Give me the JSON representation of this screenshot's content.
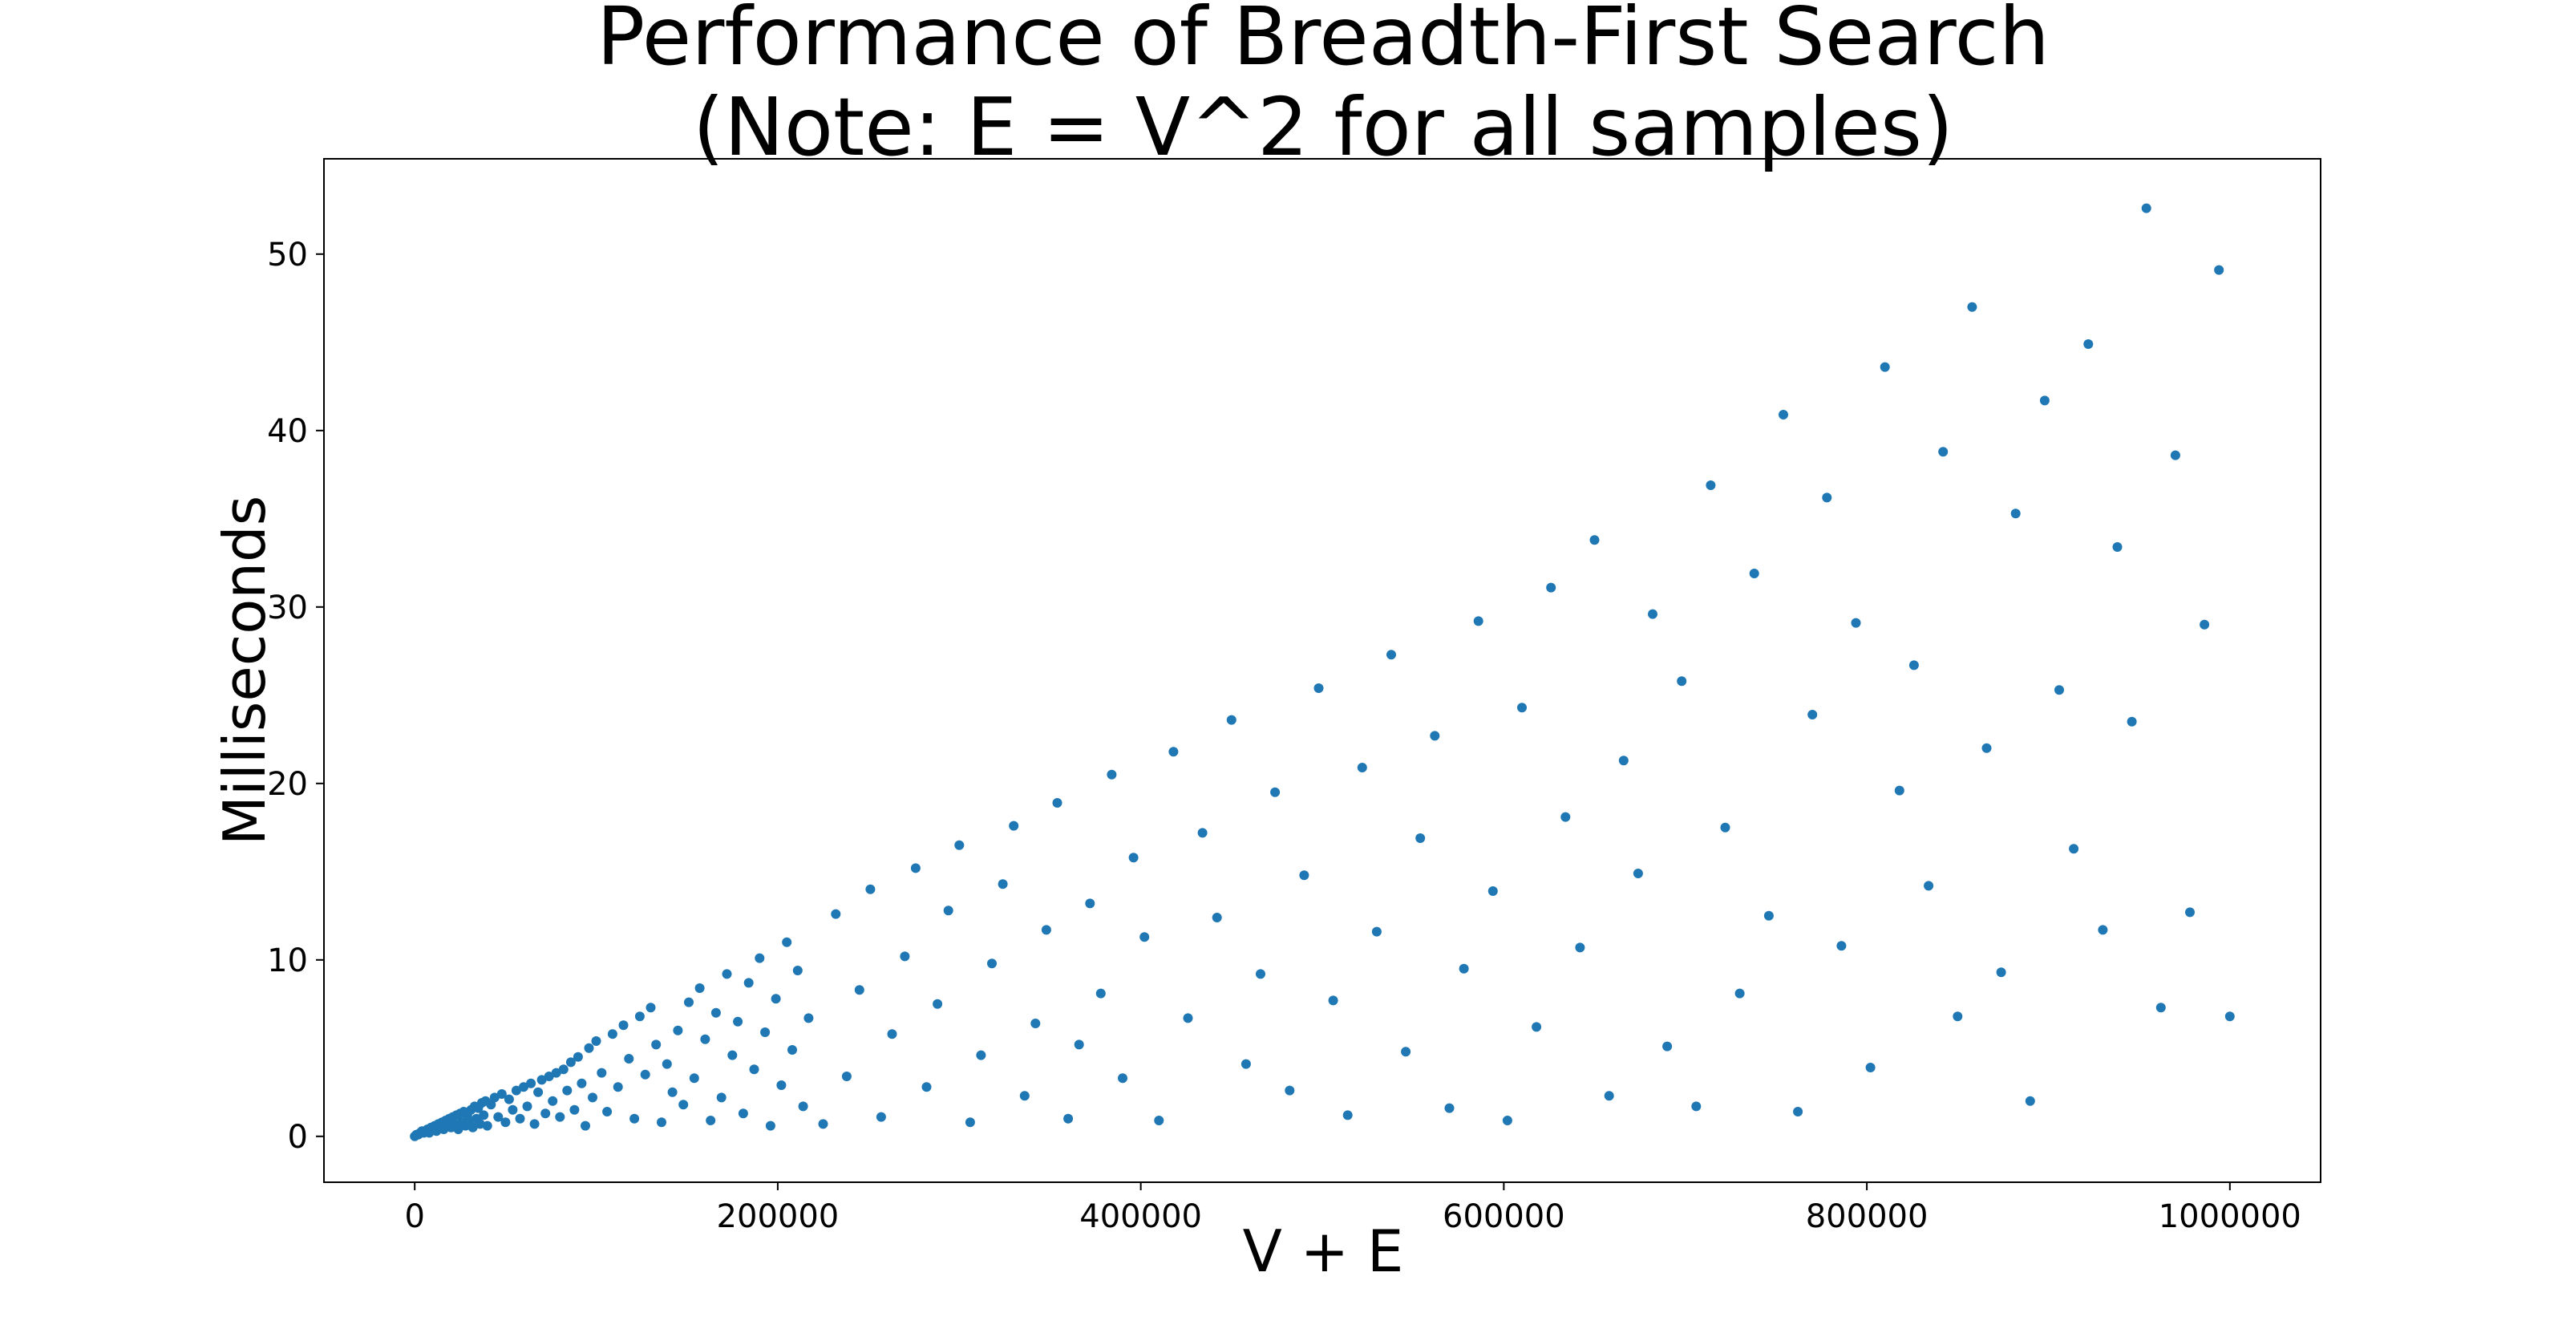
{
  "chart_data": {
    "type": "scatter",
    "title": [
      "Performance of Breadth-First Search",
      "(Note: E = V^2 for all samples)"
    ],
    "xlabel": "V + E",
    "ylabel": "Milliseconds",
    "xlim": [
      -50000,
      1050000
    ],
    "ylim": [
      -2.6,
      55.4
    ],
    "x_ticks": [
      0,
      200000,
      400000,
      600000,
      800000,
      1000000
    ],
    "x_tick_labels": [
      "0",
      "200000",
      "400000",
      "600000",
      "800000",
      "1000000"
    ],
    "y_ticks": [
      0,
      10,
      20,
      30,
      40,
      50
    ],
    "y_tick_labels": [
      "0",
      "10",
      "20",
      "30",
      "40",
      "50"
    ],
    "grid": false,
    "marker_color": "#1f77b4",
    "series": [
      {
        "points": [
          [
            0,
            0.0
          ],
          [
            1000,
            0.1
          ],
          [
            2000,
            0.1
          ],
          [
            3000,
            0.2
          ],
          [
            4000,
            0.3
          ],
          [
            5000,
            0.2
          ],
          [
            6000,
            0.3
          ],
          [
            7000,
            0.4
          ],
          [
            8000,
            0.2
          ],
          [
            9000,
            0.5
          ],
          [
            10000,
            0.4
          ],
          [
            11000,
            0.6
          ],
          [
            12000,
            0.3
          ],
          [
            13000,
            0.7
          ],
          [
            14000,
            0.5
          ],
          [
            15000,
            0.8
          ],
          [
            16000,
            0.4
          ],
          [
            17000,
            0.9
          ],
          [
            18000,
            0.6
          ],
          [
            19000,
            1.0
          ],
          [
            20000,
            0.5
          ],
          [
            21000,
            1.1
          ],
          [
            22000,
            0.7
          ],
          [
            23000,
            1.2
          ],
          [
            24000,
            0.4
          ],
          [
            25000,
            1.3
          ],
          [
            26000,
            0.8
          ],
          [
            27000,
            1.4
          ],
          [
            28000,
            0.6
          ],
          [
            29000,
            1.2
          ],
          [
            30000,
            0.9
          ],
          [
            31000,
            1.5
          ],
          [
            32000,
            0.5
          ],
          [
            33000,
            1.7
          ],
          [
            34000,
            1.0
          ],
          [
            35000,
            1.6
          ],
          [
            36000,
            0.7
          ],
          [
            37000,
            1.9
          ],
          [
            38000,
            1.2
          ],
          [
            39000,
            2.0
          ],
          [
            40000,
            0.6
          ],
          [
            42000,
            1.8
          ],
          [
            44000,
            2.2
          ],
          [
            46000,
            1.1
          ],
          [
            48000,
            2.4
          ],
          [
            50000,
            0.8
          ],
          [
            52000,
            2.1
          ],
          [
            54000,
            1.5
          ],
          [
            56000,
            2.6
          ],
          [
            58000,
            1.0
          ],
          [
            60000,
            2.8
          ],
          [
            62000,
            1.7
          ],
          [
            64000,
            3.0
          ],
          [
            66000,
            0.7
          ],
          [
            68000,
            2.5
          ],
          [
            70000,
            3.2
          ],
          [
            72000,
            1.3
          ],
          [
            74000,
            3.4
          ],
          [
            76000,
            2.0
          ],
          [
            78000,
            3.6
          ],
          [
            80000,
            1.1
          ],
          [
            82000,
            3.8
          ],
          [
            84000,
            2.6
          ],
          [
            86000,
            4.2
          ],
          [
            88000,
            1.5
          ],
          [
            90000,
            4.5
          ],
          [
            92000,
            3.0
          ],
          [
            94000,
            0.6
          ],
          [
            96000,
            5.0
          ],
          [
            98000,
            2.2
          ],
          [
            100000,
            5.4
          ],
          [
            103000,
            3.6
          ],
          [
            106000,
            1.4
          ],
          [
            109000,
            5.8
          ],
          [
            112000,
            2.8
          ],
          [
            115000,
            6.3
          ],
          [
            118000,
            4.4
          ],
          [
            121000,
            1.0
          ],
          [
            124000,
            6.8
          ],
          [
            127000,
            3.5
          ],
          [
            130000,
            7.3
          ],
          [
            133000,
            5.2
          ],
          [
            136000,
            0.8
          ],
          [
            139000,
            4.1
          ],
          [
            142000,
            2.5
          ],
          [
            145000,
            6.0
          ],
          [
            148000,
            1.8
          ],
          [
            151000,
            7.6
          ],
          [
            154000,
            3.3
          ],
          [
            157000,
            8.4
          ],
          [
            160000,
            5.5
          ],
          [
            163000,
            0.9
          ],
          [
            166000,
            7.0
          ],
          [
            169000,
            2.2
          ],
          [
            172000,
            9.2
          ],
          [
            175000,
            4.6
          ],
          [
            178000,
            6.5
          ],
          [
            181000,
            1.3
          ],
          [
            184000,
            8.7
          ],
          [
            187000,
            3.8
          ],
          [
            190000,
            10.1
          ],
          [
            193000,
            5.9
          ],
          [
            196000,
            0.6
          ],
          [
            199000,
            7.8
          ],
          [
            202000,
            2.9
          ],
          [
            205000,
            11.0
          ],
          [
            208000,
            4.9
          ],
          [
            211000,
            9.4
          ],
          [
            214000,
            1.7
          ],
          [
            217000,
            6.7
          ],
          [
            225000,
            0.7
          ],
          [
            232000,
            12.6
          ],
          [
            238000,
            3.4
          ],
          [
            245000,
            8.3
          ],
          [
            251000,
            14.0
          ],
          [
            257000,
            1.1
          ],
          [
            263000,
            5.8
          ],
          [
            270000,
            10.2
          ],
          [
            276000,
            15.2
          ],
          [
            282000,
            2.8
          ],
          [
            288000,
            7.5
          ],
          [
            294000,
            12.8
          ],
          [
            300000,
            16.5
          ],
          [
            306000,
            0.8
          ],
          [
            312000,
            4.6
          ],
          [
            318000,
            9.8
          ],
          [
            324000,
            14.3
          ],
          [
            330000,
            17.6
          ],
          [
            336000,
            2.3
          ],
          [
            342000,
            6.4
          ],
          [
            348000,
            11.7
          ],
          [
            354000,
            18.9
          ],
          [
            360000,
            1.0
          ],
          [
            366000,
            5.2
          ],
          [
            372000,
            13.2
          ],
          [
            378000,
            8.1
          ],
          [
            384000,
            20.5
          ],
          [
            390000,
            3.3
          ],
          [
            396000,
            15.8
          ],
          [
            402000,
            11.3
          ],
          [
            410000,
            0.9
          ],
          [
            418000,
            21.8
          ],
          [
            426000,
            6.7
          ],
          [
            434000,
            17.2
          ],
          [
            442000,
            12.4
          ],
          [
            450000,
            23.6
          ],
          [
            458000,
            4.1
          ],
          [
            466000,
            9.2
          ],
          [
            474000,
            19.5
          ],
          [
            482000,
            2.6
          ],
          [
            490000,
            14.8
          ],
          [
            498000,
            25.4
          ],
          [
            506000,
            7.7
          ],
          [
            514000,
            1.2
          ],
          [
            522000,
            20.9
          ],
          [
            530000,
            11.6
          ],
          [
            538000,
            27.3
          ],
          [
            546000,
            4.8
          ],
          [
            554000,
            16.9
          ],
          [
            562000,
            22.7
          ],
          [
            570000,
            1.6
          ],
          [
            578000,
            9.5
          ],
          [
            586000,
            29.2
          ],
          [
            594000,
            13.9
          ],
          [
            602000,
            0.9
          ],
          [
            610000,
            24.3
          ],
          [
            618000,
            6.2
          ],
          [
            626000,
            31.1
          ],
          [
            634000,
            18.1
          ],
          [
            642000,
            10.7
          ],
          [
            650000,
            33.8
          ],
          [
            658000,
            2.3
          ],
          [
            666000,
            21.3
          ],
          [
            674000,
            14.9
          ],
          [
            682000,
            29.6
          ],
          [
            690000,
            5.1
          ],
          [
            698000,
            25.8
          ],
          [
            706000,
            1.7
          ],
          [
            714000,
            36.9
          ],
          [
            722000,
            17.5
          ],
          [
            730000,
            8.1
          ],
          [
            738000,
            31.9
          ],
          [
            746000,
            12.5
          ],
          [
            754000,
            40.9
          ],
          [
            762000,
            1.4
          ],
          [
            770000,
            23.9
          ],
          [
            778000,
            36.2
          ],
          [
            786000,
            10.8
          ],
          [
            794000,
            29.1
          ],
          [
            802000,
            3.9
          ],
          [
            810000,
            43.6
          ],
          [
            818000,
            19.6
          ],
          [
            826000,
            26.7
          ],
          [
            834000,
            14.2
          ],
          [
            842000,
            38.8
          ],
          [
            850000,
            6.8
          ],
          [
            858000,
            47.0
          ],
          [
            866000,
            22.0
          ],
          [
            874000,
            9.3
          ],
          [
            882000,
            35.3
          ],
          [
            890000,
            2.0
          ],
          [
            898000,
            41.7
          ],
          [
            906000,
            25.3
          ],
          [
            914000,
            16.3
          ],
          [
            922000,
            44.9
          ],
          [
            930000,
            11.7
          ],
          [
            938000,
            33.4
          ],
          [
            946000,
            23.5
          ],
          [
            954000,
            52.6
          ],
          [
            962000,
            7.3
          ],
          [
            970000,
            38.6
          ],
          [
            978000,
            12.7
          ],
          [
            986000,
            29.0
          ],
          [
            994000,
            49.1
          ],
          [
            1000000,
            6.8
          ]
        ]
      }
    ]
  }
}
